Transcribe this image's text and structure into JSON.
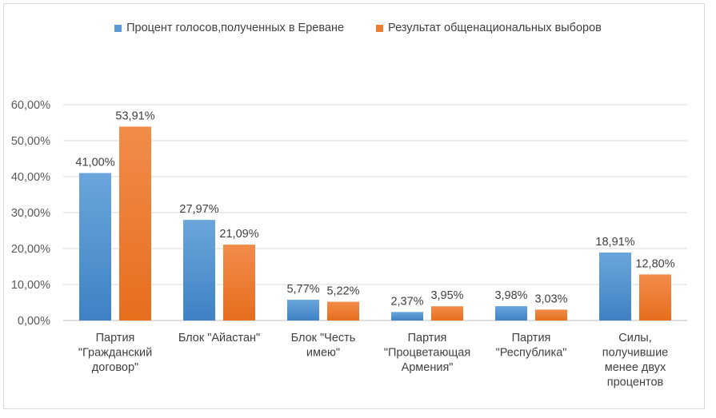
{
  "chart_data": {
    "type": "bar",
    "title": "",
    "xlabel": "",
    "ylabel": "",
    "ylim": [
      0,
      0.6
    ],
    "yticks": [
      "0,00%",
      "10,00%",
      "20,00%",
      "30,00%",
      "40,00%",
      "50,00%",
      "60,00%"
    ],
    "ytick_values": [
      0,
      0.1,
      0.2,
      0.3,
      0.4,
      0.5,
      0.6
    ],
    "grid": true,
    "legend_position": "top-center",
    "categories": [
      [
        "Партия",
        "\"Гражданский",
        "договор\""
      ],
      [
        "Блок \"Айастан\""
      ],
      [
        "Блок \"Честь",
        "имею\""
      ],
      [
        "Партия",
        "\"Процветающая",
        "Армения\""
      ],
      [
        "Партия",
        "\"Республика\""
      ],
      [
        "Силы,",
        "получившие",
        "менее двух",
        "процентов"
      ]
    ],
    "series": [
      {
        "name": "Процент голосов,полученных в Ереване",
        "color": "#5b9bd5",
        "values": [
          0.41,
          0.2797,
          0.0577,
          0.0237,
          0.0398,
          0.1891
        ],
        "labels": [
          "41,00%",
          "27,97%",
          "5,77%",
          "2,37%",
          "3,98%",
          "18,91%"
        ]
      },
      {
        "name": "Результат общенациональных выборов",
        "color": "#ed7d31",
        "values": [
          0.5391,
          0.2109,
          0.0522,
          0.0395,
          0.0303,
          0.128
        ],
        "labels": [
          "53,91%",
          "21,09%",
          "5,22%",
          "3,95%",
          "3,03%",
          "12,80%"
        ]
      }
    ]
  }
}
